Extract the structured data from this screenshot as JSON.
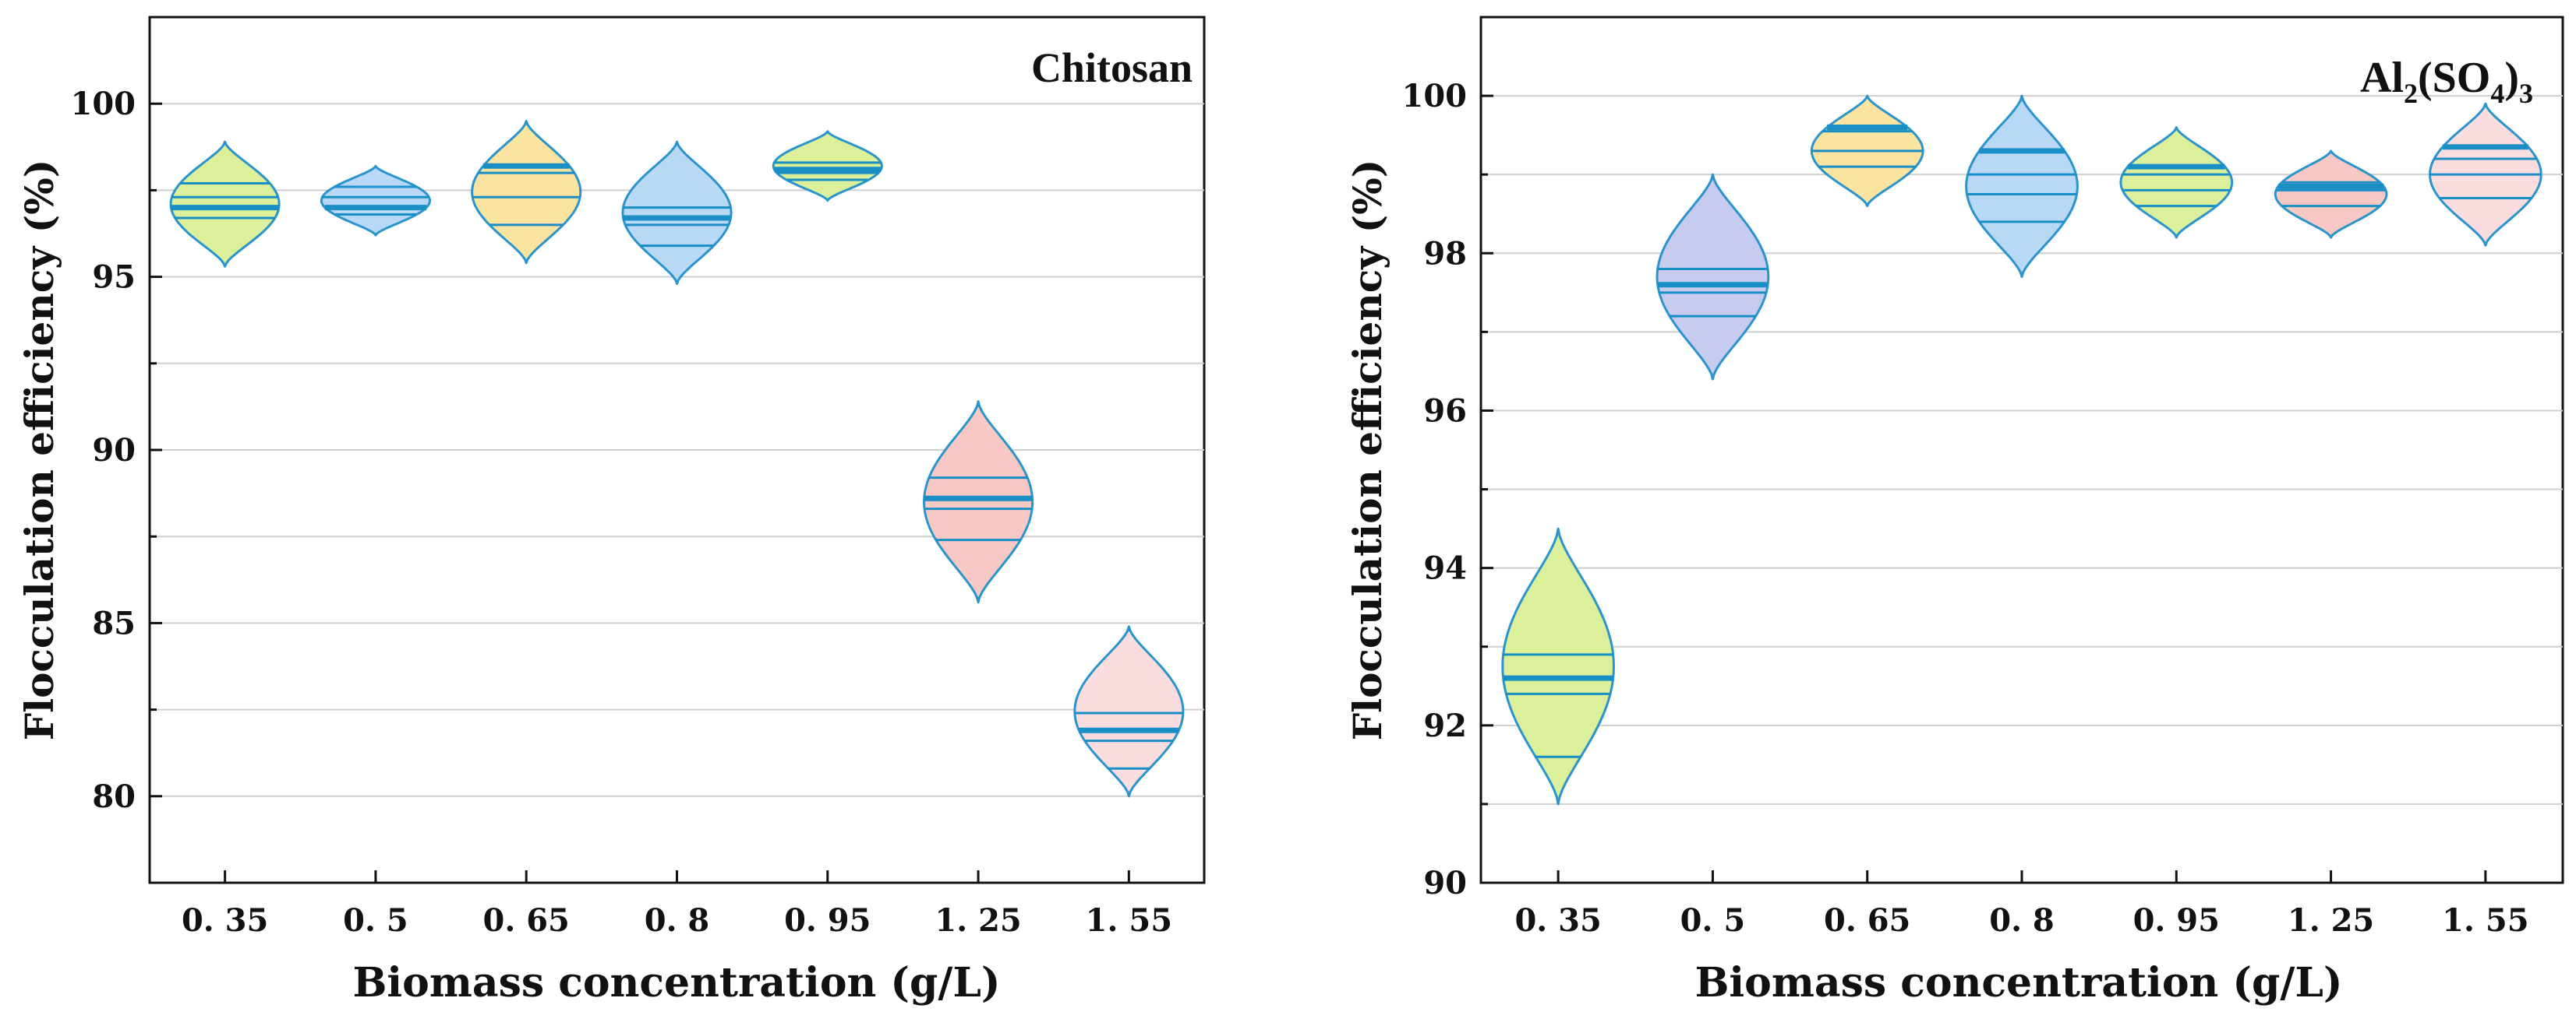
{
  "chart_data": [
    {
      "type": "violin",
      "title": "Chitosan",
      "xlabel": "Biomass concentration (g/L)",
      "ylabel": "Flocculation efficiency (%)",
      "categories": [
        "0. 35",
        "0. 5",
        "0. 65",
        "0. 8",
        "0. 95",
        "1. 25",
        "1. 55"
      ],
      "ylim": [
        77.5,
        102.5
      ],
      "yticks": [
        80,
        85,
        90,
        95,
        100
      ],
      "ytick_labels": [
        "80",
        "85",
        "90",
        "95",
        "100"
      ],
      "grid": true,
      "violins": [
        {
          "min": 95.3,
          "max": 98.9,
          "quartiles": [
            96.7,
            97.3,
            97.7
          ],
          "mean": 97.0,
          "color": "#dcef9a"
        },
        {
          "min": 96.2,
          "max": 98.2,
          "quartiles": [
            96.8,
            97.3,
            97.6
          ],
          "mean": 97.0,
          "color": "#b9d8f5"
        },
        {
          "min": 95.4,
          "max": 99.5,
          "quartiles": [
            96.5,
            97.3,
            98.0
          ],
          "mean": 98.2,
          "color": "#fbe3a0"
        },
        {
          "min": 94.8,
          "max": 98.9,
          "quartiles": [
            95.9,
            96.5,
            97.0
          ],
          "mean": 96.7,
          "color": "#b9d8f5"
        },
        {
          "min": 97.2,
          "max": 99.2,
          "quartiles": [
            97.8,
            98.0,
            98.3
          ],
          "mean": 98.1,
          "color": "#dcef9a"
        },
        {
          "min": 85.6,
          "max": 91.4,
          "quartiles": [
            87.4,
            88.3,
            89.2
          ],
          "mean": 88.6,
          "color": "#f8c9c4"
        },
        {
          "min": 80.0,
          "max": 84.9,
          "quartiles": [
            80.8,
            81.6,
            82.4
          ],
          "mean": 81.9,
          "color": "#fbdde0"
        }
      ]
    },
    {
      "type": "violin",
      "title": "Al2(SO4)3",
      "title_parts": {
        "a": "Al",
        "b": "2",
        "c": "(SO",
        "d": "4",
        "e": ")",
        "f": "3"
      },
      "xlabel": "Biomass concentration (g/L)",
      "ylabel": "Flocculation efficiency (%)",
      "categories": [
        "0. 35",
        "0. 5",
        "0. 65",
        "0. 8",
        "0. 95",
        "1. 25",
        "1. 55"
      ],
      "ylim": [
        90,
        101
      ],
      "yticks": [
        90,
        92,
        94,
        96,
        98,
        100
      ],
      "ytick_labels": [
        "90",
        "92",
        "94",
        "96",
        "98",
        "100"
      ],
      "grid": true,
      "violins": [
        {
          "min": 91.0,
          "max": 94.5,
          "quartiles": [
            91.6,
            92.4,
            92.9
          ],
          "mean": 92.6,
          "color": "#dcef9a"
        },
        {
          "min": 96.4,
          "max": 99.0,
          "quartiles": [
            97.2,
            97.5,
            97.8
          ],
          "mean": 97.6,
          "color": "#c7cbf0"
        },
        {
          "min": 98.6,
          "max": 100.0,
          "quartiles": [
            99.1,
            99.3,
            99.55
          ],
          "mean": 99.6,
          "color": "#fbe3a0"
        },
        {
          "min": 97.7,
          "max": 100.0,
          "quartiles": [
            98.4,
            98.75,
            99.0
          ],
          "mean": 99.3,
          "color": "#b9d8f5"
        },
        {
          "min": 98.2,
          "max": 99.6,
          "quartiles": [
            98.6,
            98.8,
            99.0
          ],
          "mean": 99.1,
          "color": "#dcef9a"
        },
        {
          "min": 98.2,
          "max": 99.3,
          "quartiles": [
            98.6,
            98.8,
            98.9
          ],
          "mean": 98.85,
          "color": "#f8c9c4"
        },
        {
          "min": 98.1,
          "max": 99.9,
          "quartiles": [
            98.7,
            99.0,
            99.2
          ],
          "mean": 99.35,
          "color": "#fbdde0"
        }
      ]
    }
  ]
}
